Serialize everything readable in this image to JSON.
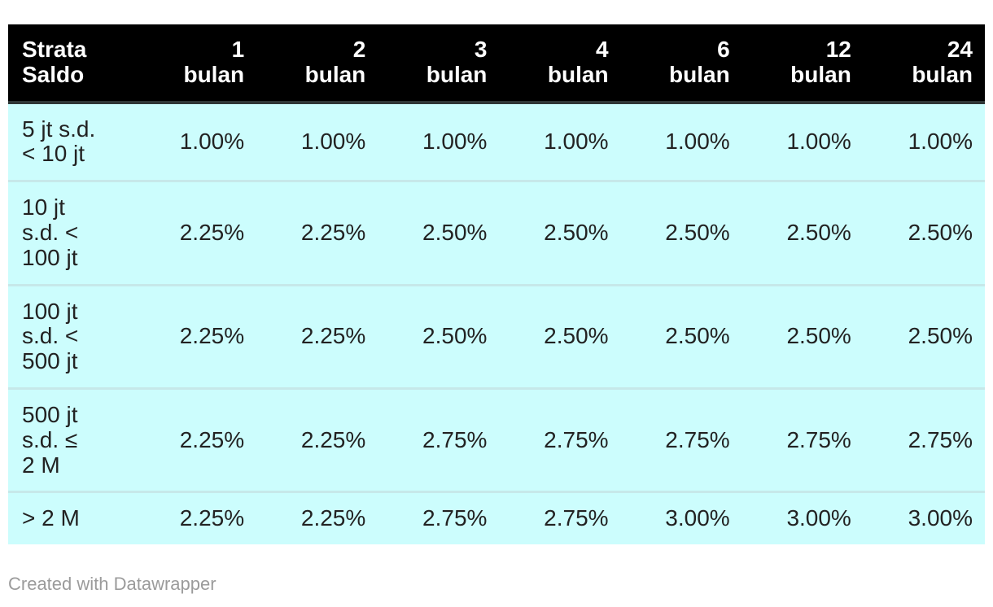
{
  "chart_data": {
    "type": "table",
    "columns": [
      "Strata Saldo",
      "1 bulan",
      "2 bulan",
      "3 bulan",
      "4 bulan",
      "6 bulan",
      "12 bulan",
      "24 bulan"
    ],
    "rows": [
      [
        "5 jt s.d. < 10 jt",
        "1.00%",
        "1.00%",
        "1.00%",
        "1.00%",
        "1.00%",
        "1.00%",
        "1.00%"
      ],
      [
        "10 jt s.d. < 100 jt",
        "2.25%",
        "2.25%",
        "2.50%",
        "2.50%",
        "2.50%",
        "2.50%",
        "2.50%"
      ],
      [
        "100 jt s.d. < 500 jt",
        "2.25%",
        "2.25%",
        "2.50%",
        "2.50%",
        "2.50%",
        "2.50%",
        "2.50%"
      ],
      [
        "500 jt s.d. ≤ 2 M",
        "2.25%",
        "2.25%",
        "2.75%",
        "2.75%",
        "2.75%",
        "2.75%",
        "2.75%"
      ],
      [
        "> 2 M",
        "2.25%",
        "2.25%",
        "2.75%",
        "2.75%",
        "3.00%",
        "3.00%",
        "3.00%"
      ]
    ],
    "title": "",
    "legend_position": "none",
    "grid": "row-separators"
  },
  "table": {
    "columns": [
      {
        "label": "Strata\nSaldo"
      },
      {
        "label": "1\nbulan"
      },
      {
        "label": "2\nbulan"
      },
      {
        "label": "3\nbulan"
      },
      {
        "label": "4\nbulan"
      },
      {
        "label": "6\nbulan"
      },
      {
        "label": "12\nbulan"
      },
      {
        "label": "24\nbulan"
      }
    ],
    "rows": [
      {
        "label": "5 jt s.d.\n< 10 jt",
        "values": [
          "1.00%",
          "1.00%",
          "1.00%",
          "1.00%",
          "1.00%",
          "1.00%",
          "1.00%"
        ]
      },
      {
        "label": "10 jt\ns.d. <\n100 jt",
        "values": [
          "2.25%",
          "2.25%",
          "2.50%",
          "2.50%",
          "2.50%",
          "2.50%",
          "2.50%"
        ]
      },
      {
        "label": "100 jt\ns.d. <\n500 jt",
        "values": [
          "2.25%",
          "2.25%",
          "2.50%",
          "2.50%",
          "2.50%",
          "2.50%",
          "2.50%"
        ]
      },
      {
        "label": "500 jt\ns.d. ≤\n2 M",
        "values": [
          "2.25%",
          "2.25%",
          "2.75%",
          "2.75%",
          "2.75%",
          "2.75%",
          "2.75%"
        ]
      },
      {
        "label": "> 2 M",
        "values": [
          "2.25%",
          "2.25%",
          "2.75%",
          "2.75%",
          "3.00%",
          "3.00%",
          "3.00%"
        ]
      }
    ]
  },
  "footer": {
    "attribution": "Created with Datawrapper"
  },
  "colors": {
    "header_bg": "#000000",
    "header_text": "#ffffff",
    "header_border": "#2f3636",
    "row_bg": "#ccfdfd",
    "row_separator": "#c6e8e9",
    "cell_text": "#222222",
    "attribution_text": "#9b9b9b",
    "page_bg": "#ffffff"
  }
}
